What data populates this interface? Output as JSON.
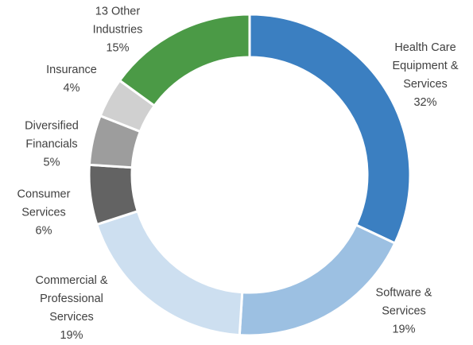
{
  "chart_data": {
    "type": "pie",
    "donut": true,
    "categories": [
      "Health Care Equipment & Services",
      "Software & Services",
      "Commercial & Professional Services",
      "Consumer Services",
      "Diversified Financials",
      "Insurance",
      "13 Other Industries"
    ],
    "values": [
      32,
      19,
      19,
      6,
      5,
      4,
      15
    ],
    "value_labels": [
      "32%",
      "19%",
      "19%",
      "6%",
      "5%",
      "4%",
      "15%"
    ],
    "colors": [
      "#3b7fc1",
      "#9cc0e2",
      "#cddff0",
      "#636363",
      "#9d9d9d",
      "#d0d0d0",
      "#4b9a46"
    ]
  }
}
